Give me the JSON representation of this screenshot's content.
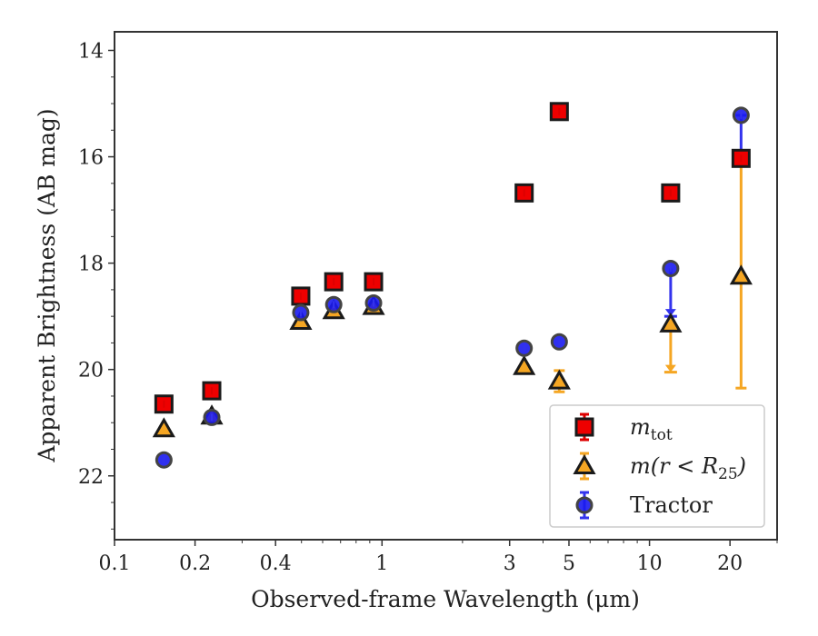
{
  "chart_data": {
    "type": "scatter",
    "xlabel": "Observed-frame Wavelength (μm)",
    "ylabel": "Apparent Brightness (AB mag)",
    "xscale": "log",
    "xlim": [
      0.1,
      30
    ],
    "ylim": [
      23.2,
      13.65
    ],
    "y_inverted": true,
    "x_ticks": [
      {
        "value": 0.1,
        "label": "0.1"
      },
      {
        "value": 0.2,
        "label": "0.2"
      },
      {
        "value": 0.4,
        "label": "0.4"
      },
      {
        "value": 1,
        "label": "1"
      },
      {
        "value": 3,
        "label": "3"
      },
      {
        "value": 5,
        "label": "5"
      },
      {
        "value": 10,
        "label": "10"
      },
      {
        "value": 20,
        "label": "20"
      }
    ],
    "y_ticks": [
      {
        "value": 14,
        "label": "14"
      },
      {
        "value": 16,
        "label": "16"
      },
      {
        "value": 18,
        "label": "18"
      },
      {
        "value": 20,
        "label": "20"
      },
      {
        "value": 22,
        "label": "22"
      }
    ],
    "legend_position": "lower right",
    "grid": false,
    "series": [
      {
        "name": "m_tot",
        "label_main": "m",
        "label_sub": "tot",
        "marker": "square",
        "color": "#ee0000",
        "errorbar_color": "#dd0000",
        "points": [
          {
            "x": 0.153,
            "y": 20.65
          },
          {
            "x": 0.231,
            "y": 20.4
          },
          {
            "x": 0.497,
            "y": 18.62
          },
          {
            "x": 0.66,
            "y": 18.35
          },
          {
            "x": 0.93,
            "y": 18.35
          },
          {
            "x": 3.4,
            "y": 16.68
          },
          {
            "x": 4.6,
            "y": 15.15
          },
          {
            "x": 12.0,
            "y": 16.68
          },
          {
            "x": 22.0,
            "y": 16.03
          }
        ]
      },
      {
        "name": "m(r < R25)",
        "label_main": "m(r < R",
        "label_sub": "25",
        "label_end": ")",
        "marker": "triangle",
        "color": "#f5a623",
        "errorbar_color": "#f5a623",
        "points": [
          {
            "x": 0.153,
            "y": 21.12
          },
          {
            "x": 0.231,
            "y": 20.88
          },
          {
            "x": 0.497,
            "y": 19.1
          },
          {
            "x": 0.66,
            "y": 18.9
          },
          {
            "x": 0.93,
            "y": 18.82
          },
          {
            "x": 3.4,
            "y": 19.95
          },
          {
            "x": 4.6,
            "y": 20.22,
            "err_low": 0.2,
            "err_high": 0.2
          },
          {
            "x": 12.0,
            "y": 19.15,
            "upper_limit_to": 20.05
          },
          {
            "x": 22.0,
            "y": 18.25,
            "err_low": 2.1,
            "err_high": 2.1
          }
        ]
      },
      {
        "name": "Tractor",
        "label_main": "Tractor",
        "marker": "circle",
        "color": "#1a1aee",
        "errorbar_color": "#3333ee",
        "points": [
          {
            "x": 0.153,
            "y": 21.7
          },
          {
            "x": 0.231,
            "y": 20.9
          },
          {
            "x": 0.497,
            "y": 18.93
          },
          {
            "x": 0.66,
            "y": 18.78
          },
          {
            "x": 0.93,
            "y": 18.75
          },
          {
            "x": 3.4,
            "y": 19.6
          },
          {
            "x": 4.6,
            "y": 19.48
          },
          {
            "x": 12.0,
            "y": 18.1,
            "upper_limit_to": 19.0
          },
          {
            "x": 22.0,
            "y": 15.22,
            "err_low": 0.8,
            "err_high": 0
          }
        ]
      }
    ]
  }
}
